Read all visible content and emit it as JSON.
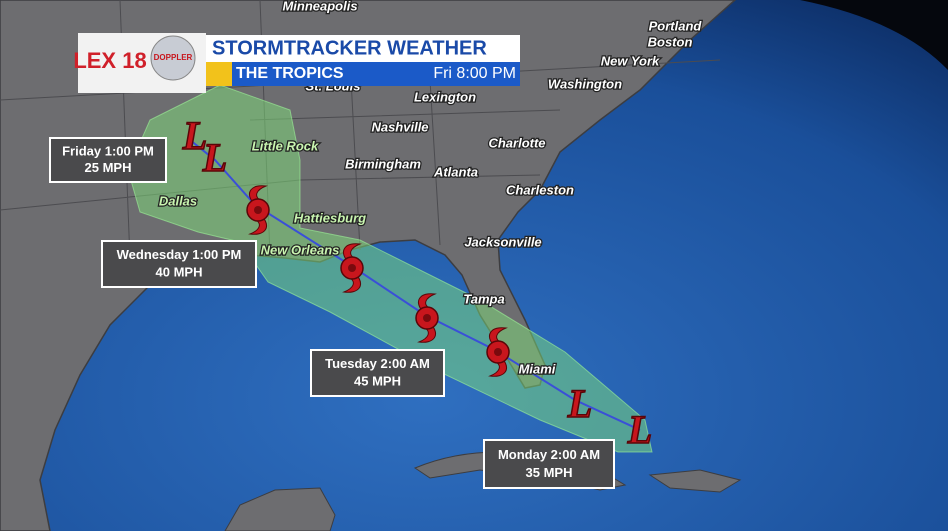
{
  "header": {
    "logo": "LEX 18",
    "logo_badge": "DOPPLER",
    "title": "STORMTRACKER WEATHER",
    "subtitle": "THE TROPICS",
    "time": "Fri 8:00 PM"
  },
  "cities": [
    "Minneapolis",
    "Portland",
    "Boston",
    "New York",
    "Washington",
    "St. Louis",
    "Lexington",
    "Nashville",
    "Little Rock",
    "Charlotte",
    "Birmingham",
    "Atlanta",
    "Charleston",
    "Dallas",
    "Hattiesburg",
    "New Orleans",
    "Jacksonville",
    "Tampa",
    "Miami"
  ],
  "low_markers": [
    "L",
    "L",
    "L",
    "L"
  ],
  "callouts": [
    {
      "time": "Friday 1:00 PM",
      "speed": "25 MPH"
    },
    {
      "time": "Wednesday 1:00 PM",
      "speed": "40 MPH"
    },
    {
      "time": "Tuesday 2:00 AM",
      "speed": "45 MPH"
    },
    {
      "time": "Monday 2:00 AM",
      "speed": "35 MPH"
    }
  ]
}
